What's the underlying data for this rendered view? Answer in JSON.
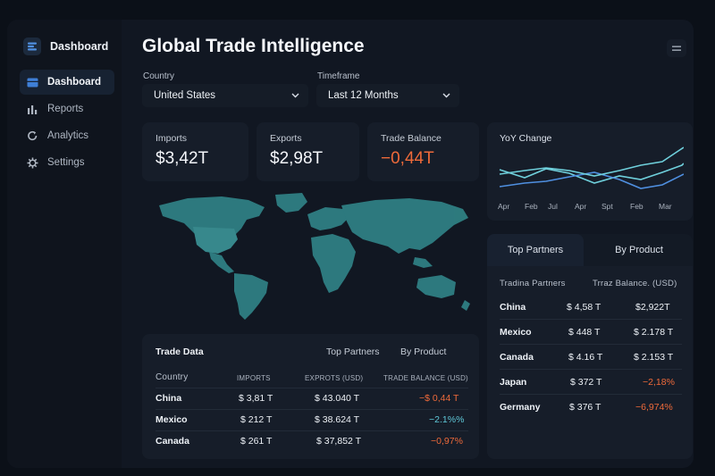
{
  "brand": {
    "label": "Dashboard",
    "icon": "stack-icon"
  },
  "sidebar": {
    "items": [
      {
        "label": "Dashboard",
        "icon": "layout-icon",
        "active": true
      },
      {
        "label": "Reports",
        "icon": "bar-chart-icon",
        "active": false
      },
      {
        "label": "Analytics",
        "icon": "refresh-icon",
        "active": false
      },
      {
        "label": "Settings",
        "icon": "gear-icon",
        "active": false
      }
    ]
  },
  "header": {
    "title": "Global Trade Intelligence",
    "menu_icon": "hamburger-icon"
  },
  "filters": {
    "country": {
      "label": "Country",
      "value": "United States"
    },
    "timeframe": {
      "label": "Timeframe",
      "value": "Last 12 Months"
    }
  },
  "kpis": {
    "imports": {
      "label": "Imports",
      "value": "$3,42T"
    },
    "exports": {
      "label": "Exports",
      "value": "$2,98T"
    },
    "balance": {
      "label": "Trade Balance",
      "value": "−0,44T",
      "color": "#ee6a3a"
    }
  },
  "yoy": {
    "title": "YoY Change",
    "months": [
      "Apr",
      "Feb",
      "Jul",
      "Apr",
      "Spt",
      "Feb",
      "Mar"
    ]
  },
  "trade_data": {
    "title": "Trade Data",
    "tabs": [
      "Top Partners",
      "By Product"
    ],
    "headers": [
      "Country",
      "IMPORTS",
      "EXPROTS (USD)",
      "TRADE BALANCE (USD)"
    ],
    "rows": [
      {
        "country": "China",
        "imports": "$ 3,81 T",
        "exports": "$ 43.040 T",
        "balance": "−$ 0,44 T",
        "balance_color": "#ee6a3a"
      },
      {
        "country": "Mexico",
        "imports": "$ 212 T",
        "exports": "$ 38.624 T",
        "balance": "−2.1%%",
        "balance_color": "#5fc8d8"
      },
      {
        "country": "Canada",
        "imports": "$ 261 T",
        "exports": "$ 37,852 T",
        "balance": "−0,97%",
        "balance_color": "#ee6a3a"
      }
    ]
  },
  "partners": {
    "tabs": [
      "Top Partners",
      "By Product"
    ],
    "headers": [
      "Tradina Partners",
      "Trraz Balance. (USD)"
    ],
    "rows": [
      {
        "country": "China",
        "value": "$ 4,58 T",
        "balance": "$2,922T",
        "balance_color": "#eef2f7"
      },
      {
        "country": "Mexico",
        "value": "$ 448 T",
        "balance": "$ 2.178 T",
        "balance_color": "#eef2f7"
      },
      {
        "country": "Canada",
        "value": "$ 4.16 T",
        "balance": "$ 2.153 T",
        "balance_color": "#eef2f7"
      },
      {
        "country": "Japan",
        "value": "$ 372 T",
        "balance": "−2,18%",
        "balance_color": "#ee6a3a"
      },
      {
        "country": "Germany",
        "value": "$ 376 T",
        "balance": "−6,974%",
        "balance_color": "#ee6a3a"
      }
    ]
  }
}
